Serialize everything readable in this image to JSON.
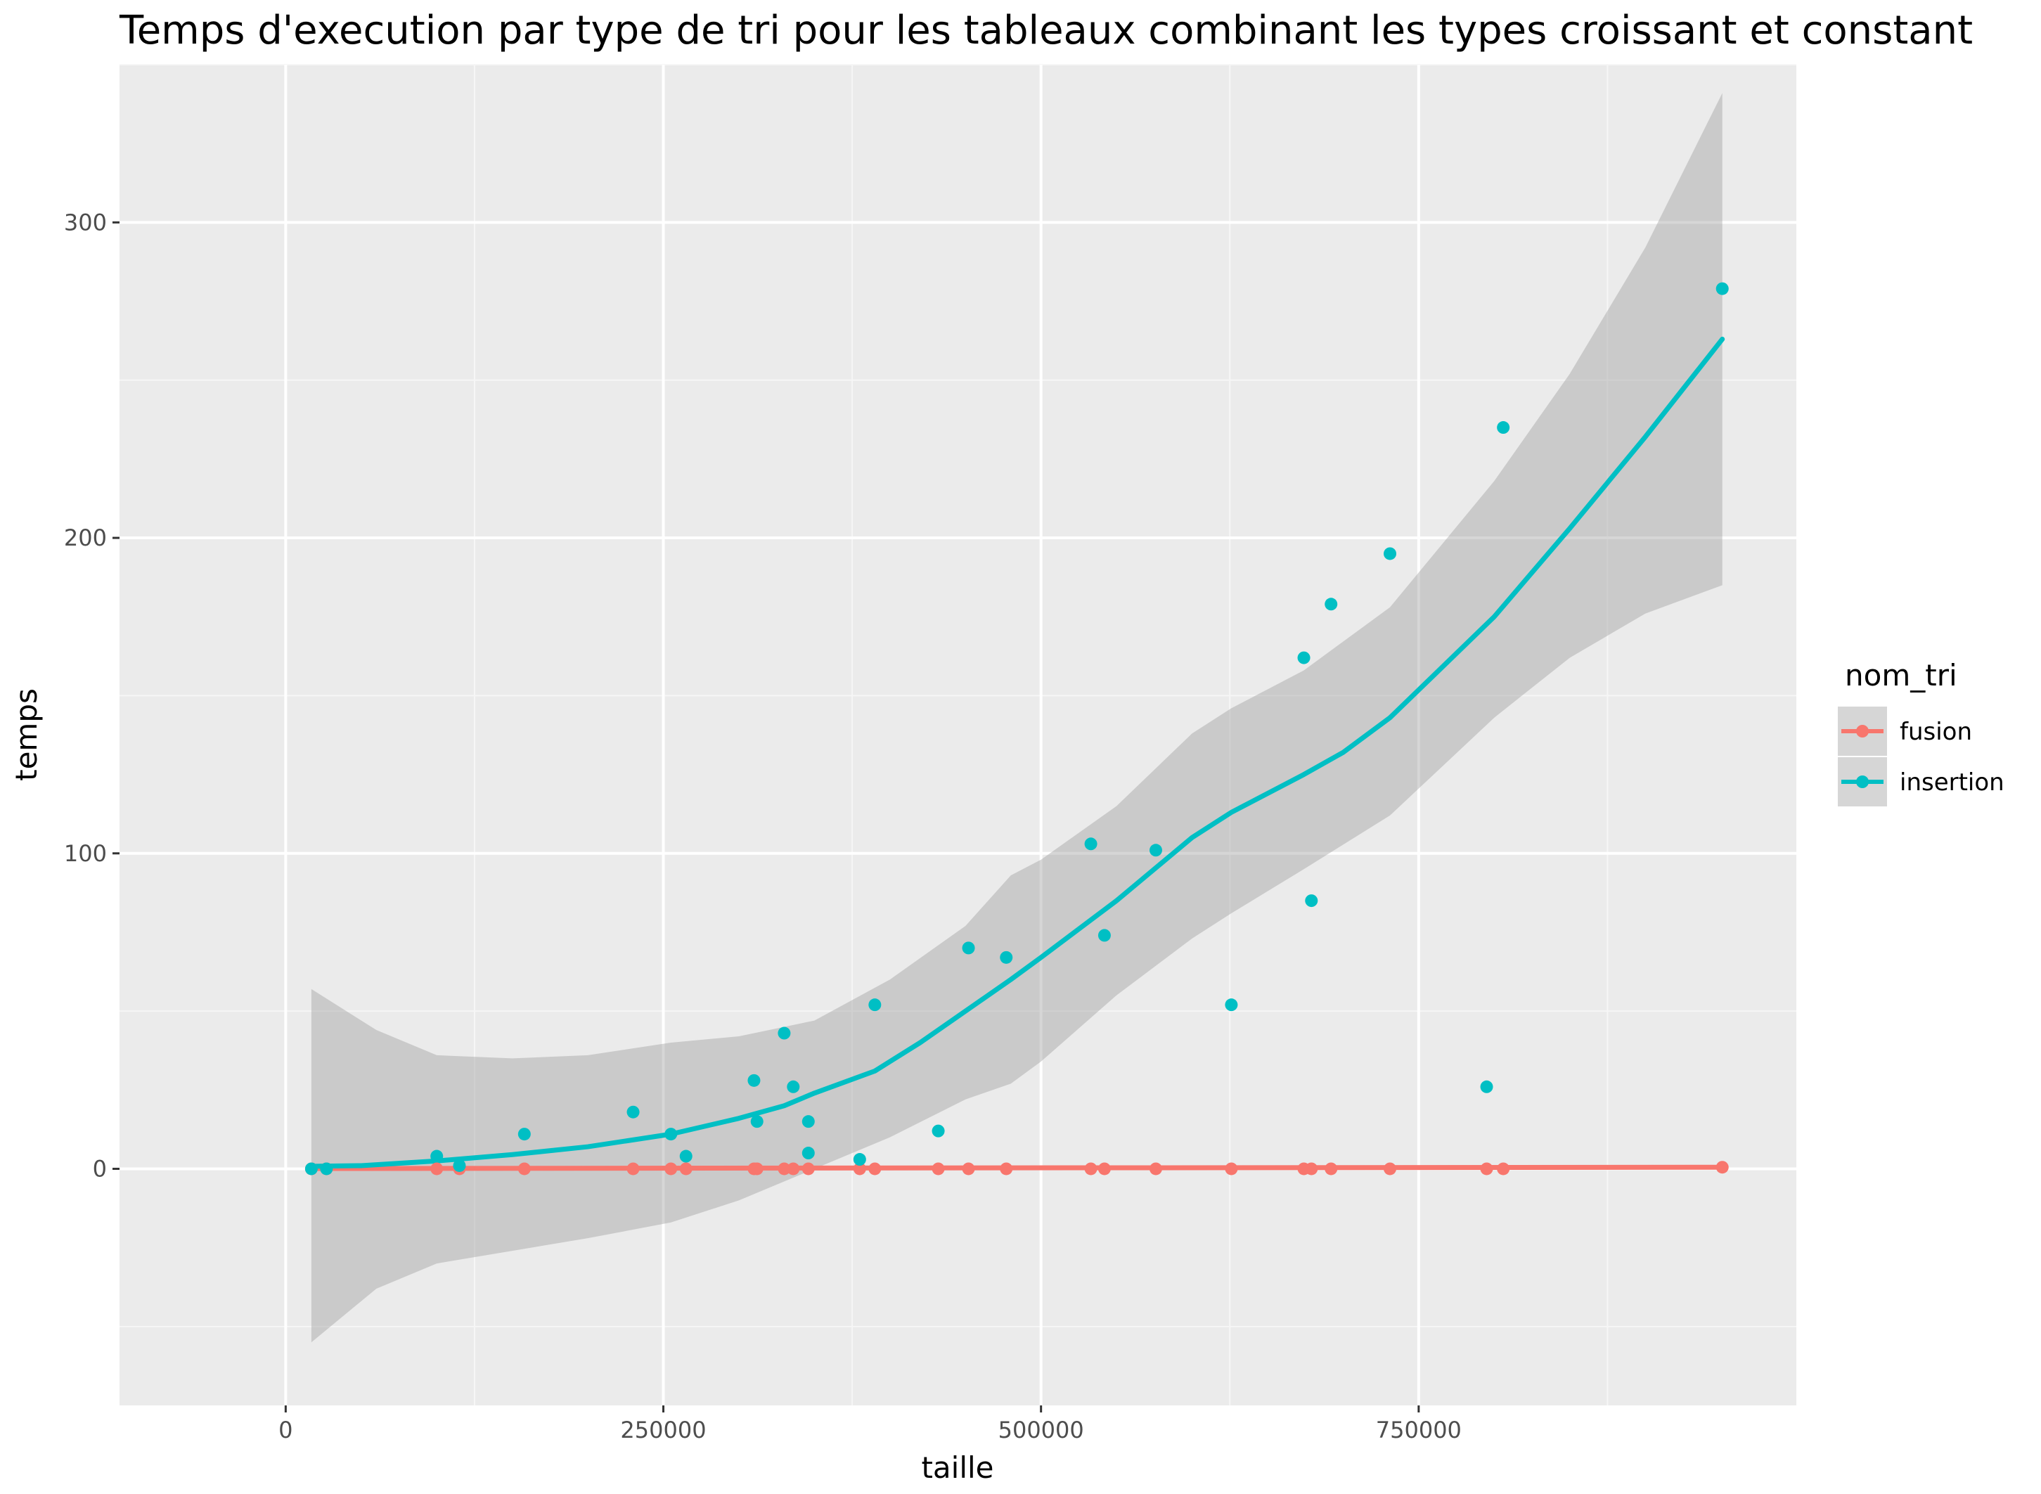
{
  "chart_data": {
    "type": "scatter",
    "title": "Temps d'execution par type de tri pour les tableaux combinant les types croissant et constant",
    "xlabel": "taille",
    "ylabel": "temps",
    "xlim": [
      -110000,
      1000000
    ],
    "ylim": [
      -75,
      350
    ],
    "x_ticks": [
      0,
      250000,
      500000,
      750000
    ],
    "y_ticks": [
      0,
      100,
      200,
      300
    ],
    "x_tick_labels": [
      "0",
      "250000",
      "500000",
      "750000"
    ],
    "y_tick_labels": [
      "0",
      "100",
      "200",
      "300"
    ],
    "grid": true,
    "legend": {
      "title": "nom_tri",
      "position": "right",
      "entries": [
        "fusion",
        "insertion"
      ]
    },
    "series": [
      {
        "name": "fusion",
        "color": "#F8766D",
        "points": [
          [
            17000,
            0
          ],
          [
            27000,
            0
          ],
          [
            100000,
            0
          ],
          [
            115000,
            0
          ],
          [
            158000,
            0
          ],
          [
            230000,
            0
          ],
          [
            255000,
            0
          ],
          [
            265000,
            0
          ],
          [
            310000,
            0
          ],
          [
            312000,
            0
          ],
          [
            330000,
            0
          ],
          [
            336000,
            0
          ],
          [
            346000,
            0
          ],
          [
            380000,
            0
          ],
          [
            390000,
            0
          ],
          [
            432000,
            0
          ],
          [
            452000,
            0
          ],
          [
            477000,
            0
          ],
          [
            533000,
            0
          ],
          [
            542000,
            0
          ],
          [
            576000,
            0
          ],
          [
            626000,
            0
          ],
          [
            674000,
            0
          ],
          [
            679000,
            0
          ],
          [
            692000,
            0
          ],
          [
            731000,
            0
          ],
          [
            795000,
            0
          ],
          [
            806000,
            0
          ],
          [
            951000,
            0.5
          ]
        ],
        "fit": [
          [
            17000,
            0.1
          ],
          [
            951000,
            0.5
          ]
        ]
      },
      {
        "name": "insertion",
        "color": "#00BFC4",
        "points": [
          [
            17000,
            0
          ],
          [
            27000,
            0
          ],
          [
            100000,
            4
          ],
          [
            115000,
            1
          ],
          [
            158000,
            11
          ],
          [
            230000,
            18
          ],
          [
            255000,
            11
          ],
          [
            265000,
            4
          ],
          [
            310000,
            28
          ],
          [
            312000,
            15
          ],
          [
            330000,
            43
          ],
          [
            336000,
            26
          ],
          [
            346000,
            15
          ],
          [
            346000,
            5
          ],
          [
            380000,
            3
          ],
          [
            390000,
            52
          ],
          [
            432000,
            12
          ],
          [
            452000,
            70
          ],
          [
            477000,
            67
          ],
          [
            533000,
            103
          ],
          [
            542000,
            74
          ],
          [
            576000,
            101
          ],
          [
            626000,
            52
          ],
          [
            674000,
            162
          ],
          [
            679000,
            85
          ],
          [
            692000,
            179
          ],
          [
            731000,
            195
          ],
          [
            795000,
            26
          ],
          [
            806000,
            235
          ],
          [
            951000,
            279
          ]
        ],
        "fit": [
          [
            17000,
            0.8
          ],
          [
            50000,
            1
          ],
          [
            100000,
            2.5
          ],
          [
            150000,
            4.5
          ],
          [
            200000,
            7
          ],
          [
            255000,
            11
          ],
          [
            300000,
            16
          ],
          [
            330000,
            20
          ],
          [
            350000,
            24
          ],
          [
            390000,
            31
          ],
          [
            420000,
            40
          ],
          [
            450000,
            50
          ],
          [
            480000,
            60
          ],
          [
            500000,
            67
          ],
          [
            550000,
            85
          ],
          [
            600000,
            105
          ],
          [
            626000,
            113
          ],
          [
            674000,
            125
          ],
          [
            700000,
            132
          ],
          [
            731000,
            143
          ],
          [
            800000,
            175
          ],
          [
            850000,
            203
          ],
          [
            900000,
            232
          ],
          [
            951000,
            263
          ]
        ],
        "ci_upper": [
          [
            17000,
            57
          ],
          [
            60000,
            44
          ],
          [
            100000,
            36
          ],
          [
            150000,
            35
          ],
          [
            200000,
            36
          ],
          [
            255000,
            40
          ],
          [
            300000,
            42
          ],
          [
            350000,
            47
          ],
          [
            400000,
            60
          ],
          [
            450000,
            77
          ],
          [
            480000,
            93
          ],
          [
            500000,
            98
          ],
          [
            550000,
            115
          ],
          [
            600000,
            138
          ],
          [
            626000,
            146
          ],
          [
            674000,
            158
          ],
          [
            731000,
            178
          ],
          [
            800000,
            218
          ],
          [
            850000,
            252
          ],
          [
            900000,
            292
          ],
          [
            951000,
            341
          ]
        ],
        "ci_lower": [
          [
            17000,
            -55
          ],
          [
            60000,
            -38
          ],
          [
            100000,
            -30
          ],
          [
            150000,
            -26
          ],
          [
            200000,
            -22
          ],
          [
            255000,
            -17
          ],
          [
            300000,
            -10
          ],
          [
            350000,
            0
          ],
          [
            400000,
            10
          ],
          [
            450000,
            22
          ],
          [
            480000,
            27
          ],
          [
            500000,
            34
          ],
          [
            550000,
            55
          ],
          [
            600000,
            73
          ],
          [
            626000,
            81
          ],
          [
            674000,
            95
          ],
          [
            731000,
            112
          ],
          [
            800000,
            143
          ],
          [
            850000,
            162
          ],
          [
            900000,
            176
          ],
          [
            951000,
            185
          ]
        ]
      }
    ]
  }
}
